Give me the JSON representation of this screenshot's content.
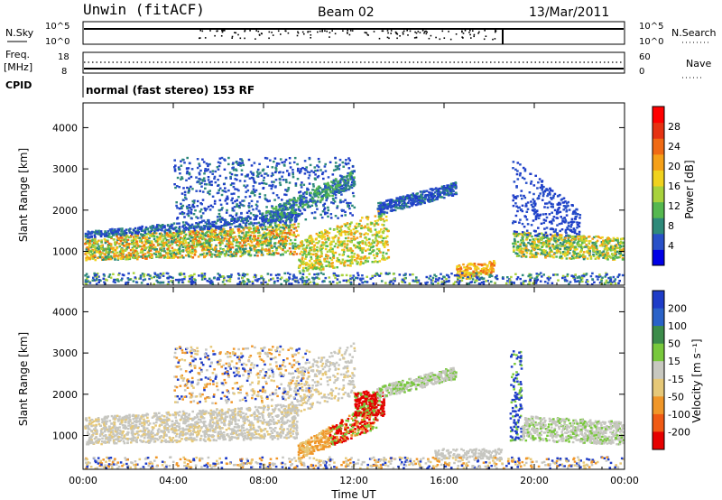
{
  "header": {
    "station": "Unwin (fitACF)",
    "beam": "Beam 02",
    "date": "13/Mar/2011"
  },
  "aux_panels": {
    "nsky_label": "N.Sky",
    "nsearch_label": "N.Search",
    "nsky_ticks": [
      "10^5",
      "10^0"
    ],
    "nsearch_ticks": [
      "10^5",
      "10^0"
    ],
    "freq_label": "Freq.",
    "freq_unit": "[MHz]",
    "freq_ticks": [
      "18",
      "8"
    ],
    "nave_label": "Nave",
    "nave_ticks": [
      "60",
      "0"
    ],
    "cpid_label": "CPID",
    "cpid_text": "normal (fast stereo) 153 RF"
  },
  "chart_data": [
    {
      "type": "heatmap",
      "name": "power",
      "ylabel": "Slant Range [km]",
      "xlabel": "",
      "x_ticks": [
        "00:00",
        "04:00",
        "08:00",
        "12:00",
        "16:00",
        "20:00",
        "00:00"
      ],
      "x_hours": [
        0,
        4,
        8,
        12,
        16,
        20,
        24
      ],
      "y_ticks": [
        1000,
        2000,
        3000,
        4000
      ],
      "xlim": [
        0,
        24
      ],
      "ylim": [
        180,
        4600
      ],
      "colorbar": {
        "label": "Power [dB]",
        "ticks": [
          4,
          8,
          12,
          16,
          20,
          24,
          28
        ],
        "range": [
          0,
          32
        ],
        "colors": [
          "#0000e6",
          "#2850c8",
          "#2e8a7a",
          "#55b84f",
          "#a8d23c",
          "#f0d21e",
          "#f5a018",
          "#f06a14",
          "#e63212",
          "#ff0000"
        ]
      }
    },
    {
      "type": "heatmap",
      "name": "velocity",
      "ylabel": "Slant Range [km]",
      "xlabel": "Time UT",
      "x_ticks": [
        "00:00",
        "04:00",
        "08:00",
        "12:00",
        "16:00",
        "20:00",
        "00:00"
      ],
      "x_hours": [
        0,
        4,
        8,
        12,
        16,
        20,
        24
      ],
      "y_ticks": [
        1000,
        2000,
        3000,
        4000
      ],
      "xlim": [
        0,
        24
      ],
      "ylim": [
        180,
        4600
      ],
      "colorbar": {
        "label": "Velocity [m s⁻¹]",
        "ticks": [
          "200",
          "100",
          "50",
          "15",
          "-15",
          "-50",
          "-100",
          "-200"
        ],
        "colors": [
          "#1e3cc8",
          "#2a62c8",
          "#3c8c4a",
          "#78c83c",
          "#c8c8c0",
          "#e6c878",
          "#f09628",
          "#f05a14",
          "#e60000"
        ]
      }
    }
  ]
}
